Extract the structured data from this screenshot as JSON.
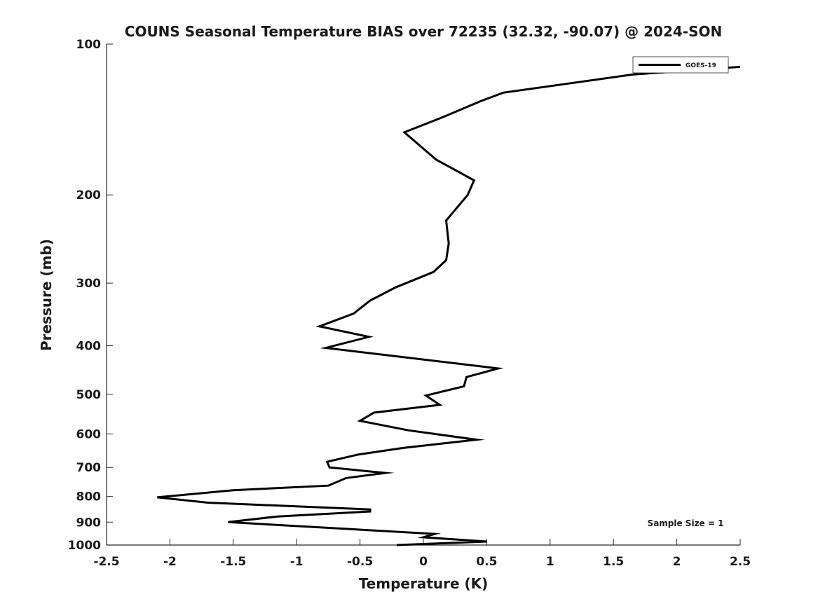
{
  "chart_data": {
    "type": "line",
    "title": "COUNS Seasonal Temperature BIAS over 72235 (32.32, -90.07) @ 2024-SON",
    "xlabel": "Temperature (K)",
    "ylabel": "Pressure (mb)",
    "xlim": [
      -2.5,
      2.5
    ],
    "ylim": [
      1000,
      100
    ],
    "yscale": "log",
    "y_reversed": true,
    "grid": false,
    "legend_position": "top-right",
    "x_ticks": [
      "-2.5",
      "-2",
      "-1.5",
      "-1",
      "-0.5",
      "0",
      "0.5",
      "1",
      "1.5",
      "2",
      "2.5"
    ],
    "x_tick_values": [
      -2.5,
      -2,
      -1.5,
      -1,
      -0.5,
      0,
      0.5,
      1,
      1.5,
      2,
      2.5
    ],
    "y_ticks": [
      "100",
      "200",
      "300",
      "400",
      "500",
      "600",
      "700",
      "800",
      "900",
      "1000"
    ],
    "y_tick_values": [
      100,
      200,
      300,
      400,
      500,
      600,
      700,
      800,
      900,
      1000
    ],
    "annotation": "Sample Size = 1",
    "series": [
      {
        "name": "GOES-19",
        "color": "#000000",
        "points": [
          {
            "x": 2.5,
            "y": 111
          },
          {
            "x": 1.65,
            "y": 115
          },
          {
            "x": 0.63,
            "y": 125
          },
          {
            "x": 0.45,
            "y": 130
          },
          {
            "x": 0.15,
            "y": 140
          },
          {
            "x": -0.15,
            "y": 150
          },
          {
            "x": 0.1,
            "y": 170
          },
          {
            "x": 0.4,
            "y": 187
          },
          {
            "x": 0.35,
            "y": 200
          },
          {
            "x": 0.18,
            "y": 225
          },
          {
            "x": 0.2,
            "y": 250
          },
          {
            "x": 0.18,
            "y": 270
          },
          {
            "x": 0.08,
            "y": 285
          },
          {
            "x": -0.22,
            "y": 306
          },
          {
            "x": -0.42,
            "y": 325
          },
          {
            "x": -0.55,
            "y": 345
          },
          {
            "x": -0.82,
            "y": 366
          },
          {
            "x": -0.43,
            "y": 384
          },
          {
            "x": -0.77,
            "y": 404
          },
          {
            "x": 0.59,
            "y": 444
          },
          {
            "x": 0.34,
            "y": 462
          },
          {
            "x": 0.32,
            "y": 482
          },
          {
            "x": 0.02,
            "y": 503
          },
          {
            "x": 0.13,
            "y": 525
          },
          {
            "x": -0.39,
            "y": 544
          },
          {
            "x": -0.5,
            "y": 565
          },
          {
            "x": -0.12,
            "y": 590
          },
          {
            "x": 0.42,
            "y": 616
          },
          {
            "x": -0.16,
            "y": 640
          },
          {
            "x": -0.52,
            "y": 660
          },
          {
            "x": -0.76,
            "y": 682
          },
          {
            "x": -0.74,
            "y": 700
          },
          {
            "x": -0.3,
            "y": 718
          },
          {
            "x": -0.61,
            "y": 735
          },
          {
            "x": -0.75,
            "y": 761
          },
          {
            "x": -1.5,
            "y": 777
          },
          {
            "x": -2.1,
            "y": 803
          },
          {
            "x": -1.7,
            "y": 823
          },
          {
            "x": -0.42,
            "y": 849
          },
          {
            "x": -0.42,
            "y": 857
          },
          {
            "x": -1.15,
            "y": 877
          },
          {
            "x": -1.54,
            "y": 900
          },
          {
            "x": 0.09,
            "y": 950
          },
          {
            "x": 0.0,
            "y": 965
          },
          {
            "x": 0.5,
            "y": 984
          },
          {
            "x": -0.21,
            "y": 1000
          }
        ]
      }
    ]
  }
}
